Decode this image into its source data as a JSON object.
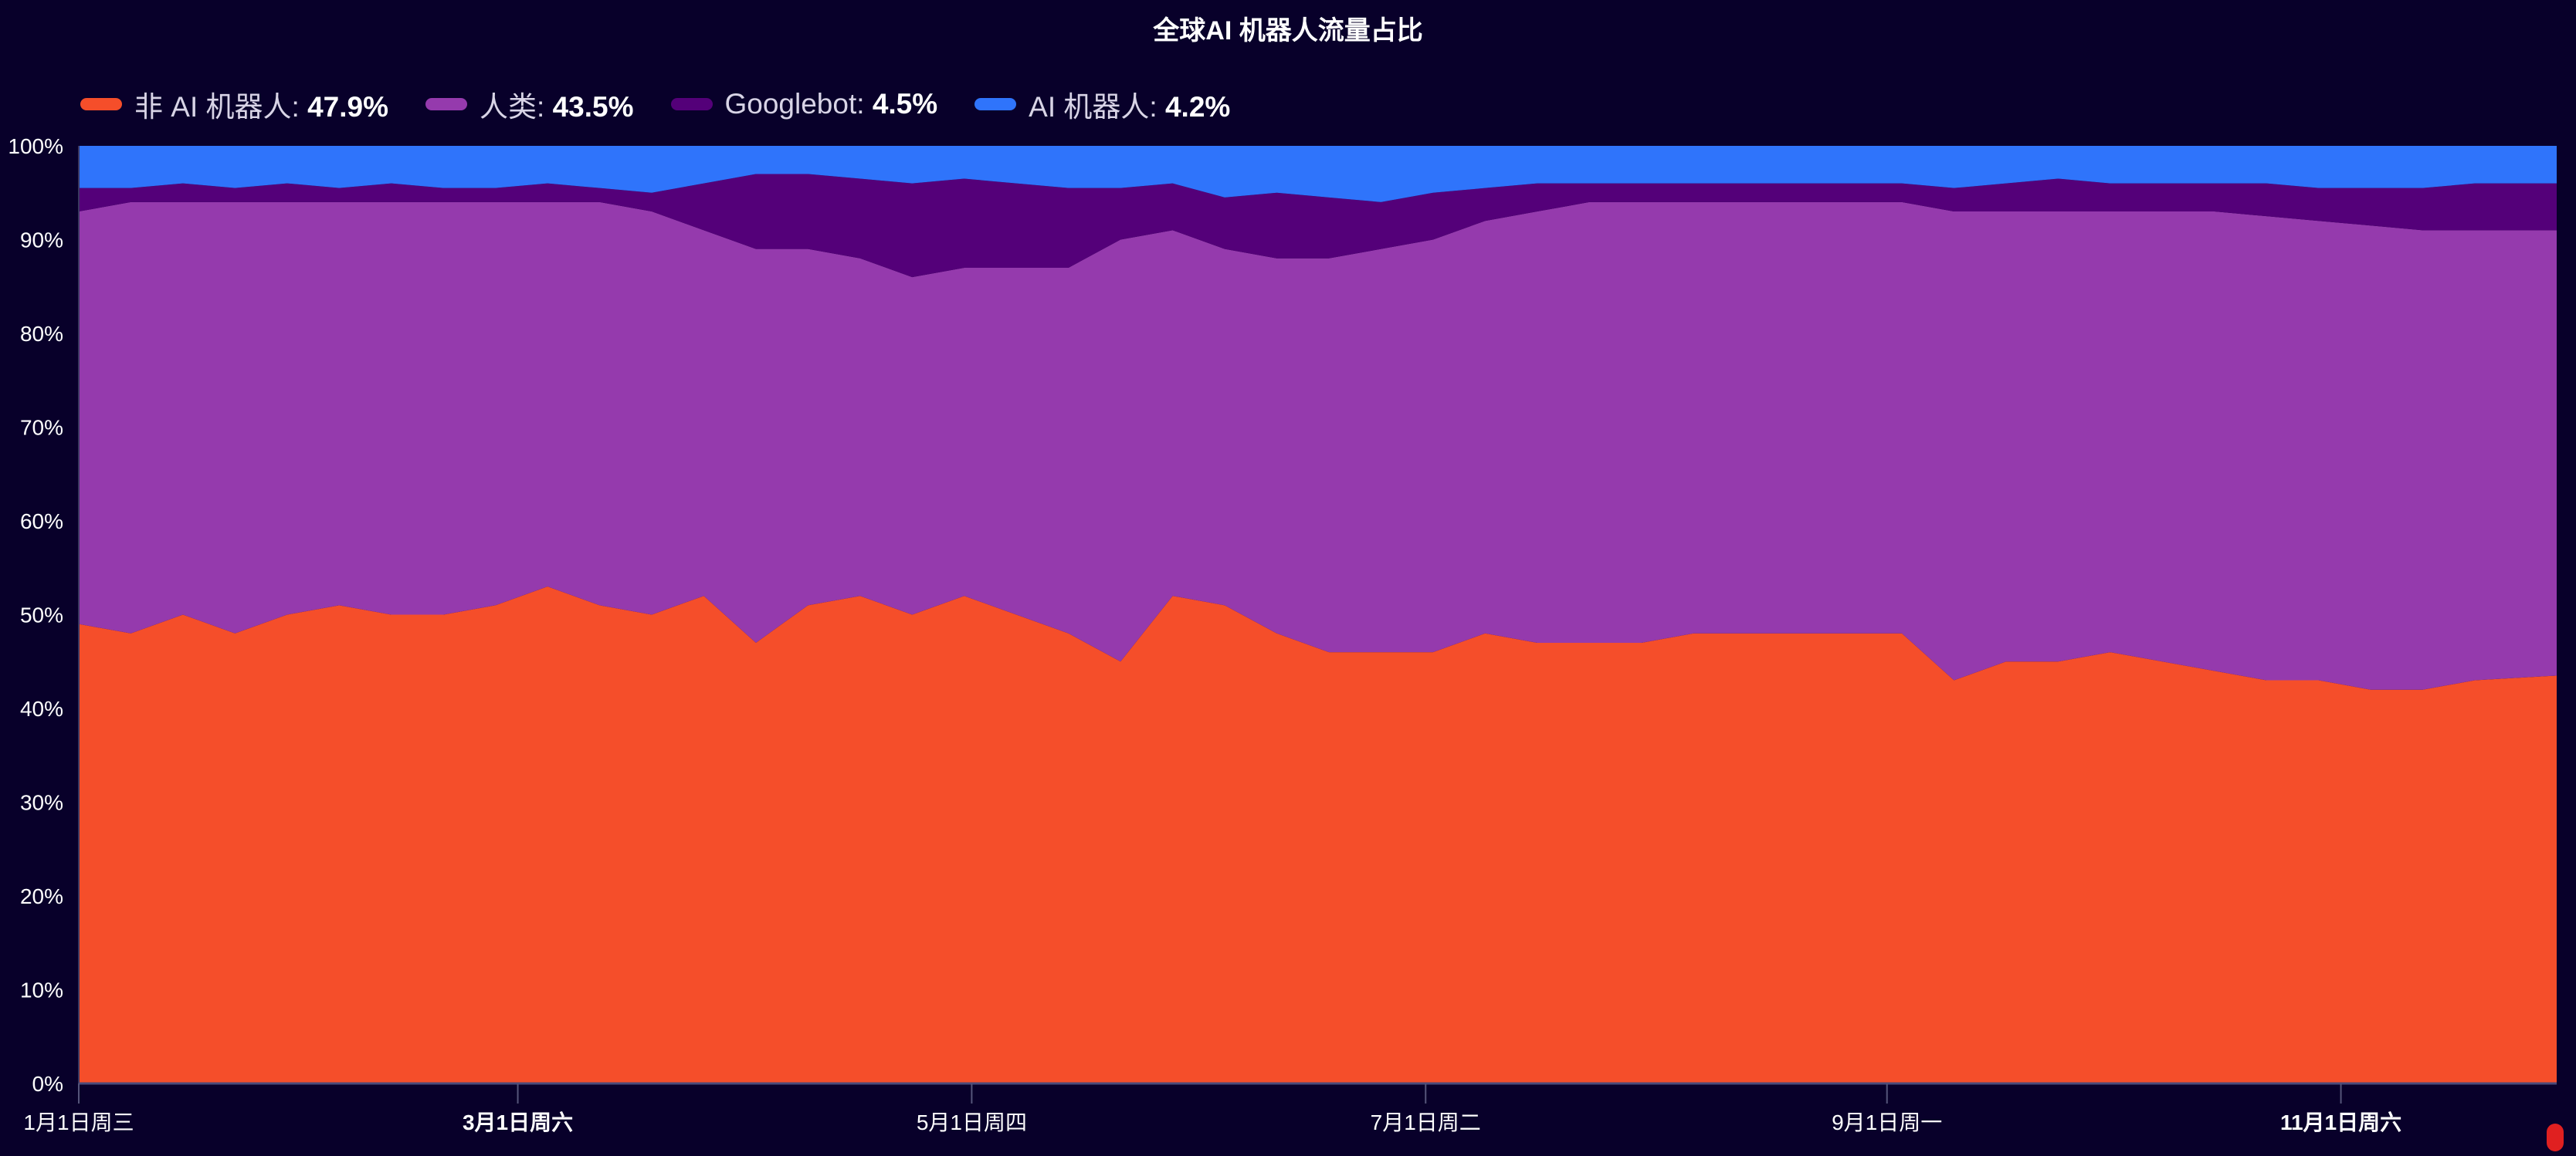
{
  "chart_data": {
    "type": "area",
    "stacked": true,
    "title": "全球AI 机器人流量占比",
    "xlabel": "",
    "ylabel": "",
    "ylim": [
      0,
      100
    ],
    "xlim": [
      "2025-01-01",
      "2025-11-30"
    ],
    "grid": false,
    "legend_position": "top-left",
    "y_ticks": [
      "0%",
      "10%",
      "20%",
      "30%",
      "40%",
      "50%",
      "60%",
      "70%",
      "80%",
      "90%",
      "100%"
    ],
    "x_ticks": [
      {
        "date": "2025-01-01",
        "label": "1月1日周三",
        "bold": false
      },
      {
        "date": "2025-03-01",
        "label": "3月1日周六",
        "bold": true
      },
      {
        "date": "2025-05-01",
        "label": "5月1日周四",
        "bold": false
      },
      {
        "date": "2025-07-01",
        "label": "7月1日周二",
        "bold": false
      },
      {
        "date": "2025-09-01",
        "label": "9月1日周一",
        "bold": false
      },
      {
        "date": "2025-11-01",
        "label": "11月1日周六",
        "bold": true
      }
    ],
    "x": [
      "2025-01-01",
      "2025-01-08",
      "2025-01-15",
      "2025-01-22",
      "2025-01-29",
      "2025-02-05",
      "2025-02-12",
      "2025-02-19",
      "2025-02-26",
      "2025-03-05",
      "2025-03-12",
      "2025-03-19",
      "2025-03-26",
      "2025-04-02",
      "2025-04-09",
      "2025-04-16",
      "2025-04-23",
      "2025-04-30",
      "2025-05-07",
      "2025-05-14",
      "2025-05-21",
      "2025-05-28",
      "2025-06-04",
      "2025-06-11",
      "2025-06-18",
      "2025-06-25",
      "2025-07-02",
      "2025-07-09",
      "2025-07-16",
      "2025-07-23",
      "2025-07-30",
      "2025-08-06",
      "2025-08-13",
      "2025-08-20",
      "2025-08-27",
      "2025-09-03",
      "2025-09-10",
      "2025-09-17",
      "2025-09-24",
      "2025-10-01",
      "2025-10-08",
      "2025-10-15",
      "2025-10-22",
      "2025-10-29",
      "2025-11-05",
      "2025-11-12",
      "2025-11-19",
      "2025-11-26"
    ],
    "series": [
      {
        "name": "非 AI 机器人",
        "summary": "47.9%",
        "color": "#f54e2a",
        "values": [
          49,
          48,
          50,
          48,
          50,
          51,
          50,
          50,
          51,
          53,
          51,
          50,
          52,
          47,
          51,
          52,
          50,
          52,
          50,
          48,
          45,
          52,
          51,
          48,
          46,
          46,
          46,
          48,
          47,
          47,
          47,
          48,
          48,
          48,
          48,
          48,
          43,
          45,
          45,
          46,
          45,
          44,
          43,
          43,
          42,
          42,
          43,
          43.5
        ]
      },
      {
        "name": "人类",
        "summary": "43.5%",
        "color": "#953aad",
        "values": [
          44,
          46,
          44,
          46,
          44,
          43,
          44,
          44,
          43,
          41,
          43,
          43,
          39,
          42,
          38,
          36,
          36,
          35,
          37,
          39,
          45,
          39,
          38,
          40,
          42,
          43,
          44,
          44,
          46,
          47,
          47,
          46,
          46,
          46,
          46,
          46,
          50,
          48,
          48,
          47,
          48,
          49,
          49.5,
          49,
          49.5,
          49,
          48,
          47.5
        ]
      },
      {
        "name": "Googlebot",
        "summary": "4.5%",
        "color": "#540079",
        "values": [
          2.5,
          1.5,
          2,
          1.5,
          2,
          1.5,
          2,
          1.5,
          1.5,
          2,
          1.5,
          2,
          5,
          8,
          8,
          8.5,
          10,
          9.5,
          9,
          8.5,
          5.5,
          5,
          5.5,
          7,
          6.5,
          5,
          5,
          3.5,
          3,
          2,
          2,
          2,
          2,
          2,
          2,
          2,
          2.5,
          3,
          3.5,
          3,
          3,
          3,
          3.5,
          3.5,
          4,
          4.5,
          5,
          5
        ]
      },
      {
        "name": "AI 机器人",
        "summary": "4.2%",
        "color": "#2f74fb",
        "values": [
          4.5,
          4.5,
          4,
          4.5,
          4,
          4.5,
          4,
          4.5,
          4.5,
          4,
          4.5,
          5,
          4,
          3,
          3,
          3.5,
          4,
          3.5,
          4,
          4.5,
          4.5,
          4,
          5.5,
          5,
          5.5,
          6,
          5,
          4.5,
          4,
          4,
          4,
          4,
          4,
          4,
          4,
          4,
          4.5,
          4,
          3.5,
          4,
          4,
          4,
          4,
          4.5,
          4.5,
          4.5,
          4,
          4
        ]
      }
    ]
  }
}
